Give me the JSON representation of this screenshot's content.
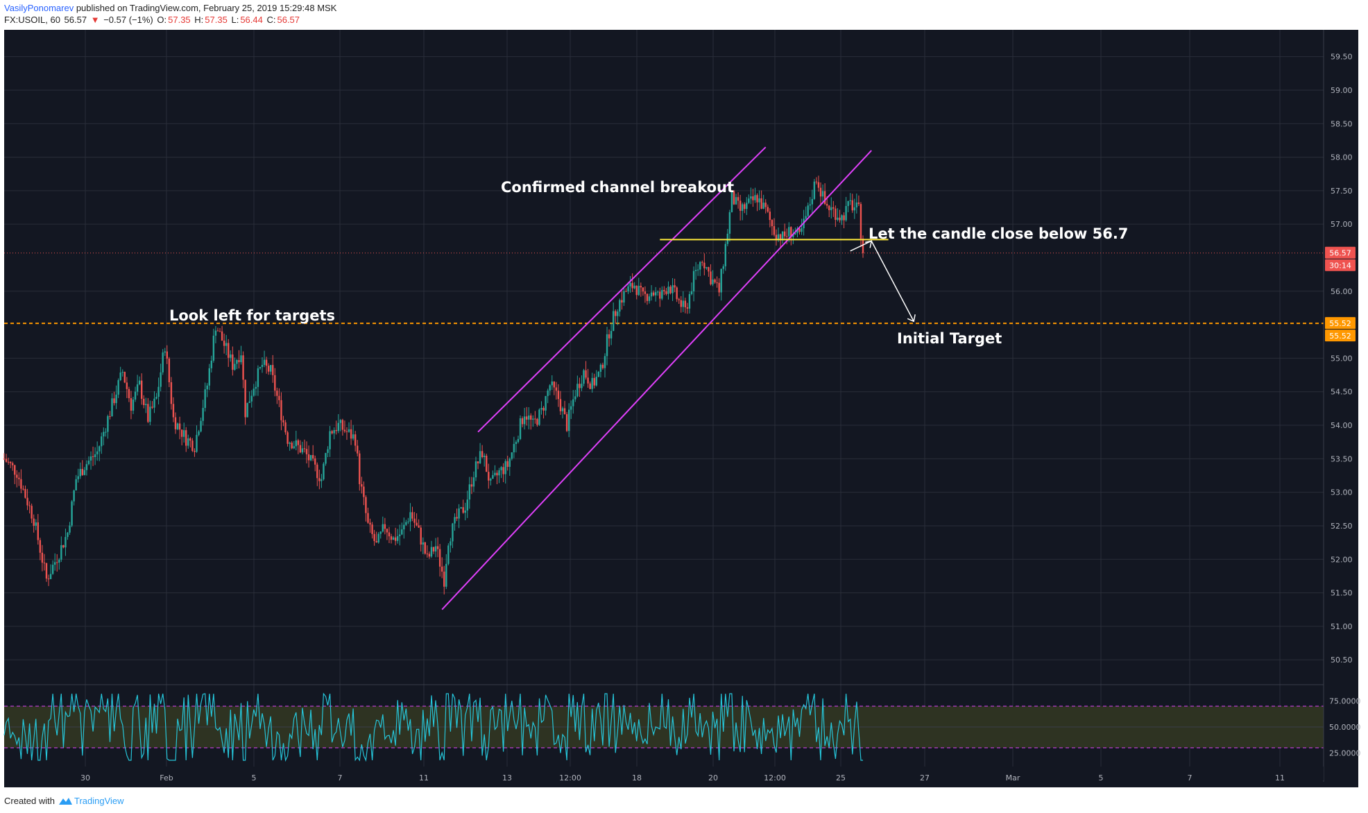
{
  "header": {
    "author": "VasilyPonomarev",
    "published": " published on TradingView.com, February 25, 2019 15:29:48 MSK",
    "symbol": "FX:USOIL, 60",
    "last": "56.57",
    "change_arrow": "▼",
    "change": "−0.57 (−1%)",
    "open_label": "O:",
    "open": "57.35",
    "high_label": "H:",
    "high": "57.35",
    "low_label": "L:",
    "low": "56.44",
    "close_label": "C:",
    "close": "56.57"
  },
  "footer": {
    "created_with": "Created with",
    "brand": "TradingView"
  },
  "colors": {
    "background": "#131722",
    "grid": "#2a2e39",
    "up": "#26a69a",
    "down": "#ef5350",
    "channel": "#e040fb",
    "support": "#ffeb3b",
    "target": "#ff9800",
    "rsi": "#26c6da",
    "rsi_band": "#2e3322",
    "annotation": "#ffffff",
    "price_badge": "#ef5350",
    "target_badge": "#ff9800"
  },
  "chart_data": {
    "type": "candlestick",
    "instrument": "FX:USOIL",
    "timeframe": "60",
    "y_ticks": [
      "59.50",
      "59.00",
      "58.50",
      "58.00",
      "57.50",
      "57.00",
      "56.00",
      "55.00",
      "54.50",
      "54.00",
      "53.50",
      "53.00",
      "52.50",
      "52.00",
      "51.50",
      "51.00",
      "50.50"
    ],
    "ylim": [
      50.15,
      59.9
    ],
    "x_ticks": [
      "30",
      "Feb",
      "5",
      "7",
      "11",
      "13",
      "12:00",
      "18",
      "20",
      "12:00",
      "25",
      "27",
      "Mar",
      "5",
      "7",
      "11"
    ],
    "last_price": "56.57",
    "countdown": "30:14",
    "target_price": "55.52",
    "target_price_2": "55.52",
    "target_level": 55.52,
    "support_level": 56.77,
    "annotations": [
      {
        "text": "Confirmed channel breakout"
      },
      {
        "text": "Let the candle close below 56.7"
      },
      {
        "text": "Look left for targets"
      },
      {
        "text": "Initial Target"
      }
    ],
    "path_points": [
      [
        0,
        53.5
      ],
      [
        6,
        53.3
      ],
      [
        14,
        52.6
      ],
      [
        20,
        51.7
      ],
      [
        26,
        52.1
      ],
      [
        30,
        52.4
      ],
      [
        34,
        53.2
      ],
      [
        38,
        53.4
      ],
      [
        44,
        53.6
      ],
      [
        50,
        54.2
      ],
      [
        56,
        54.8
      ],
      [
        60,
        54.3
      ],
      [
        64,
        54.6
      ],
      [
        68,
        54.1
      ],
      [
        72,
        54.4
      ],
      [
        76,
        55.2
      ],
      [
        80,
        54.1
      ],
      [
        86,
        53.8
      ],
      [
        90,
        53.7
      ],
      [
        96,
        54.6
      ],
      [
        100,
        55.5
      ],
      [
        104,
        55.2
      ],
      [
        108,
        54.9
      ],
      [
        112,
        55.1
      ],
      [
        114,
        54.2
      ],
      [
        118,
        54.6
      ],
      [
        122,
        54.9
      ],
      [
        126,
        54.8
      ],
      [
        130,
        54.3
      ],
      [
        134,
        53.8
      ],
      [
        138,
        53.7
      ],
      [
        142,
        53.6
      ],
      [
        146,
        53.4
      ],
      [
        150,
        53.2
      ],
      [
        154,
        53.9
      ],
      [
        158,
        54.0
      ],
      [
        162,
        53.9
      ],
      [
        166,
        53.8
      ],
      [
        168,
        53.2
      ],
      [
        172,
        52.5
      ],
      [
        176,
        52.2
      ],
      [
        180,
        52.5
      ],
      [
        184,
        52.3
      ],
      [
        188,
        52.4
      ],
      [
        192,
        52.7
      ],
      [
        196,
        52.4
      ],
      [
        200,
        52.0
      ],
      [
        204,
        52.2
      ],
      [
        208,
        51.7
      ],
      [
        210,
        52.3
      ],
      [
        214,
        52.6
      ],
      [
        218,
        52.8
      ],
      [
        222,
        53.3
      ],
      [
        226,
        53.6
      ],
      [
        230,
        53.1
      ],
      [
        234,
        53.3
      ],
      [
        238,
        53.4
      ],
      [
        242,
        53.8
      ],
      [
        246,
        54.2
      ],
      [
        250,
        54.0
      ],
      [
        254,
        54.2
      ],
      [
        258,
        54.6
      ],
      [
        262,
        54.4
      ],
      [
        266,
        54.0
      ],
      [
        270,
        54.5
      ],
      [
        274,
        54.8
      ],
      [
        278,
        54.6
      ],
      [
        282,
        54.8
      ],
      [
        286,
        55.4
      ],
      [
        290,
        55.8
      ],
      [
        294,
        56.0
      ],
      [
        298,
        56.1
      ],
      [
        302,
        55.9
      ],
      [
        306,
        56.0
      ],
      [
        310,
        55.9
      ],
      [
        314,
        56.1
      ],
      [
        318,
        55.9
      ],
      [
        322,
        55.7
      ],
      [
        326,
        56.2
      ],
      [
        330,
        56.5
      ],
      [
        334,
        56.2
      ],
      [
        338,
        56.0
      ],
      [
        342,
        56.9
      ],
      [
        344,
        57.4
      ],
      [
        348,
        57.2
      ],
      [
        352,
        57.3
      ],
      [
        356,
        57.4
      ],
      [
        360,
        57.2
      ],
      [
        364,
        56.9
      ],
      [
        368,
        56.8
      ],
      [
        372,
        56.9
      ],
      [
        376,
        56.8
      ],
      [
        380,
        57.2
      ],
      [
        384,
        57.7
      ],
      [
        388,
        57.3
      ],
      [
        392,
        57.2
      ],
      [
        396,
        57.1
      ],
      [
        400,
        57.3
      ],
      [
        404,
        57.2
      ],
      [
        406,
        56.57
      ]
    ],
    "rsi": {
      "ticks": [
        "75.0000",
        "50.0000",
        "25.0000"
      ],
      "overbought": 70,
      "oversold": 30,
      "ylim": [
        10,
        90
      ]
    }
  }
}
